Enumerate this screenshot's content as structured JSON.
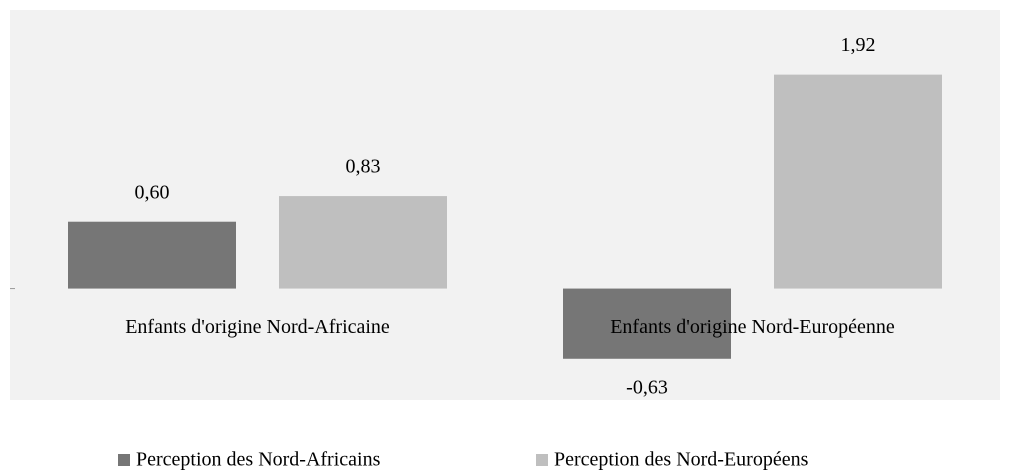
{
  "chart_data": {
    "type": "bar",
    "categories": [
      "Enfants d'origine Nord-Africaine",
      "Enfants d'origine Nord-Européenne"
    ],
    "series": [
      {
        "name": "Perception des Nord-Africains",
        "color": "#767676",
        "values": [
          0.6,
          -0.63
        ],
        "value_labels": [
          "0,60",
          "-0,63"
        ]
      },
      {
        "name": "Perception des Nord-Européens",
        "color": "#bfbfbf",
        "values": [
          0.83,
          1.92
        ],
        "value_labels": [
          "0,83",
          "1,92"
        ]
      }
    ],
    "ylim": [
      -1,
      2.5
    ],
    "legend": "bottom"
  }
}
